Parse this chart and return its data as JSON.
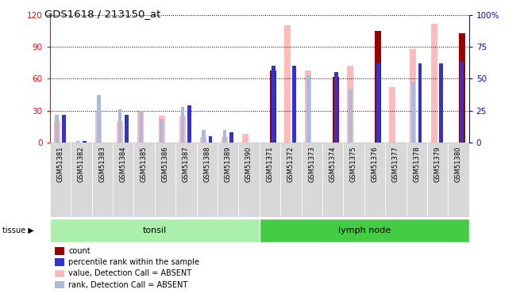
{
  "title": "GDS1618 / 213150_at",
  "samples": [
    "GSM51381",
    "GSM51382",
    "GSM51383",
    "GSM51384",
    "GSM51385",
    "GSM51386",
    "GSM51387",
    "GSM51388",
    "GSM51389",
    "GSM51390",
    "GSM51371",
    "GSM51372",
    "GSM51373",
    "GSM51374",
    "GSM51375",
    "GSM51376",
    "GSM51377",
    "GSM51378",
    "GSM51379",
    "GSM51380"
  ],
  "count_values": [
    0,
    0,
    0,
    0,
    0,
    0,
    0,
    0,
    0,
    0,
    68,
    0,
    0,
    62,
    0,
    105,
    0,
    0,
    0,
    103
  ],
  "rank_values": [
    22,
    1,
    0,
    22,
    0,
    0,
    29,
    5,
    8,
    0,
    60,
    60,
    0,
    55,
    0,
    62,
    0,
    62,
    62,
    63
  ],
  "value_absent": [
    20,
    0,
    30,
    20,
    30,
    25,
    25,
    5,
    5,
    8,
    0,
    110,
    68,
    0,
    72,
    0,
    52,
    88,
    112,
    0
  ],
  "rank_absent": [
    22,
    1,
    37,
    26,
    25,
    18,
    28,
    10,
    10,
    0,
    0,
    0,
    53,
    0,
    42,
    0,
    0,
    48,
    0,
    0
  ],
  "tissue_groups": [
    {
      "label": "tonsil",
      "start": 0,
      "end": 10,
      "color": "#aaf0aa"
    },
    {
      "label": "lymph node",
      "start": 10,
      "end": 20,
      "color": "#44cc44"
    }
  ],
  "ylim_left": [
    0,
    120
  ],
  "ylim_right": [
    0,
    100
  ],
  "yticks_left": [
    0,
    30,
    60,
    90,
    120
  ],
  "yticks_right": [
    0,
    25,
    50,
    75,
    100
  ],
  "ytick_labels_right": [
    "0",
    "25",
    "50",
    "75",
    "100%"
  ],
  "count_color": "#990000",
  "rank_color": "#3333cc",
  "value_absent_color": "#ffbbbb",
  "rank_absent_color": "#aabbdd",
  "legend_items": [
    {
      "label": "count",
      "color": "#990000"
    },
    {
      "label": "percentile rank within the sample",
      "color": "#3333cc"
    },
    {
      "label": "value, Detection Call = ABSENT",
      "color": "#ffbbbb"
    },
    {
      "label": "rank, Detection Call = ABSENT",
      "color": "#aabbdd"
    }
  ]
}
